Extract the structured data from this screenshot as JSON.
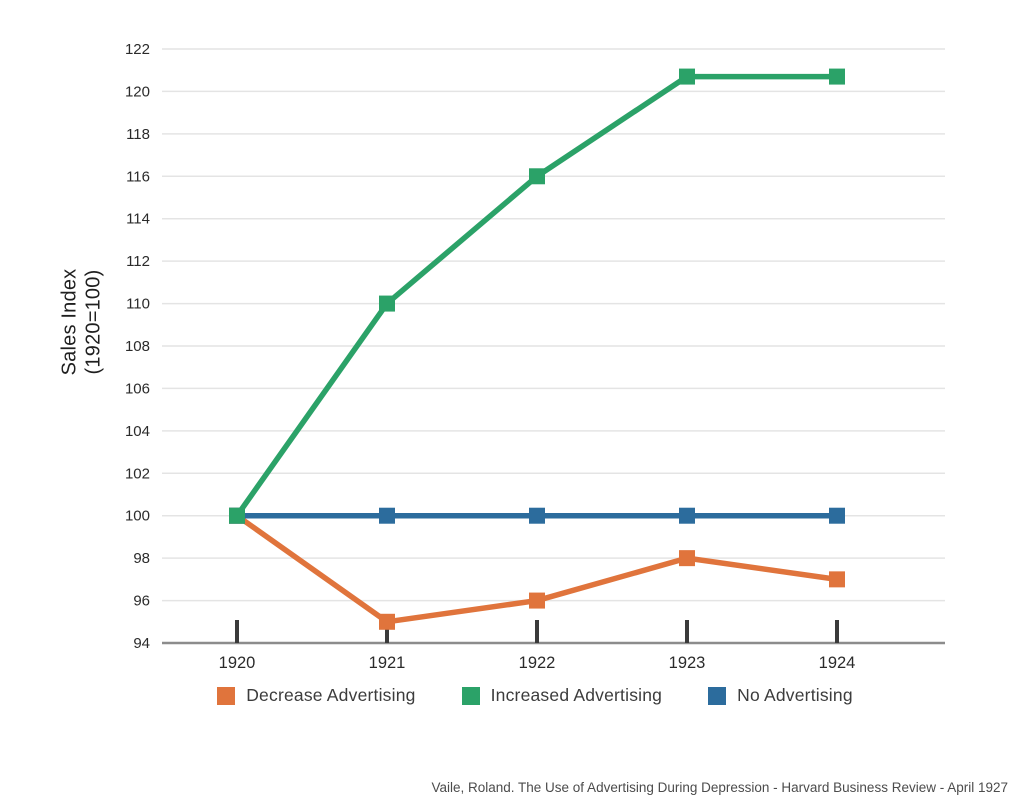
{
  "chart_data": {
    "type": "line",
    "categories": [
      "1920",
      "1921",
      "1922",
      "1923",
      "1924"
    ],
    "series": [
      {
        "name": "Decrease Advertising",
        "color": "#E0743C",
        "values": [
          100,
          95,
          96,
          98,
          97
        ]
      },
      {
        "name": "Increased Advertising",
        "color": "#2BA268",
        "values": [
          100,
          110,
          116,
          120.7,
          120.7
        ]
      },
      {
        "name": "No Advertising",
        "color": "#2C6C9D",
        "values": [
          100,
          100,
          100,
          100,
          100
        ]
      }
    ],
    "title": "",
    "xlabel": "",
    "ylabel": "Sales Index (1920=100)",
    "ylabel_lines": [
      "Sales Index",
      "(1920=100)"
    ],
    "ylim": [
      94,
      122
    ],
    "ytick_step": 2,
    "grid": true,
    "legend_position": "bottom"
  },
  "citation": "Vaile, Roland. The Use of Advertising During Depression - Harvard Business Review - April 1927",
  "style_colors": {
    "gridline": "#E4E4E4",
    "axis_line": "#8C8C8C",
    "tick_mark": "#3A3A3A",
    "axis_text": "#2B2B2B",
    "legend_text": "#3C3C3C",
    "citation_text": "#4C4C4C"
  }
}
